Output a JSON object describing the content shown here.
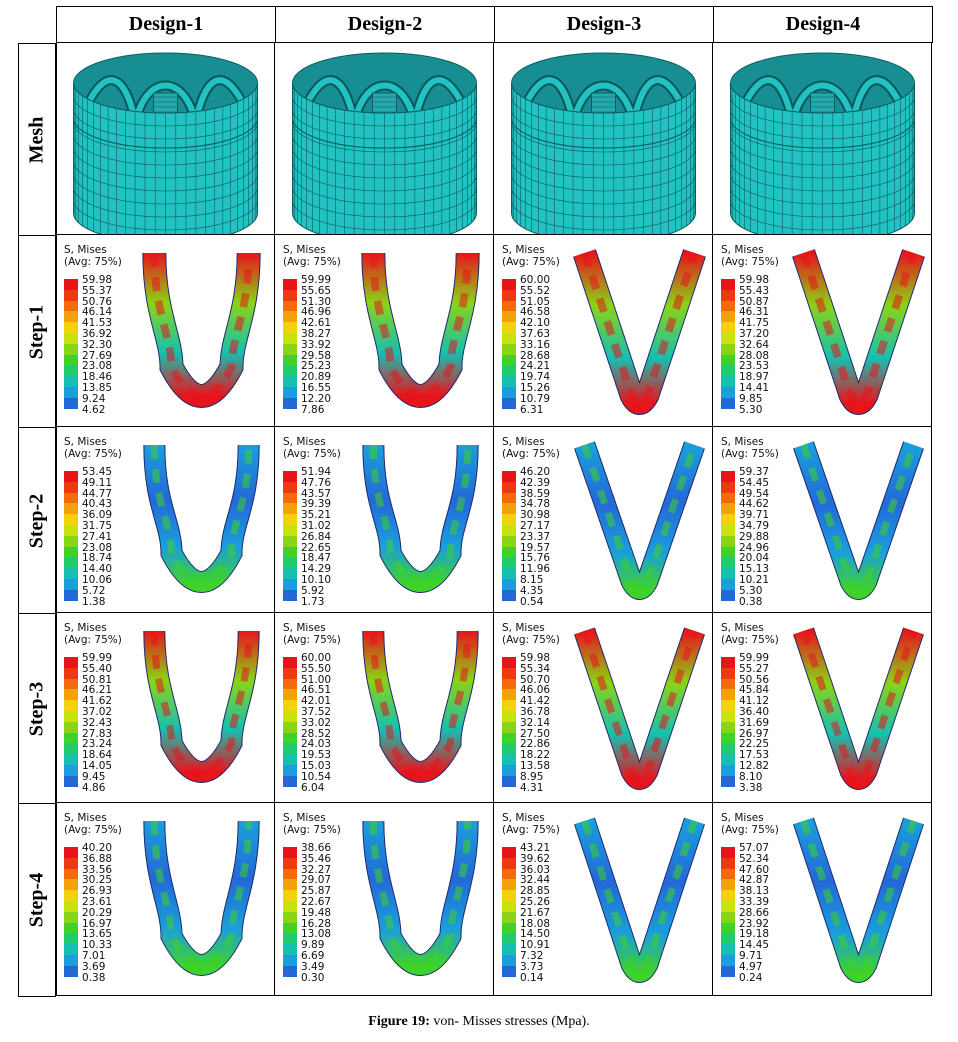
{
  "columns": [
    "Design-1",
    "Design-2",
    "Design-3",
    "Design-4"
  ],
  "rows": [
    "Mesh",
    "Step-1",
    "Step-2",
    "Step-3",
    "Step-4"
  ],
  "legend_title": [
    "S, Mises",
    "(Avg: 75%)"
  ],
  "legends": {
    "step1": [
      [
        "59.98",
        "55.37",
        "50.76",
        "46.14",
        "41.53",
        "36.92",
        "32.30",
        "27.69",
        "23.08",
        "18.46",
        "13.85",
        "9.24",
        "4.62"
      ],
      [
        "59.99",
        "55.65",
        "51.30",
        "46.96",
        "42.61",
        "38.27",
        "33.92",
        "29.58",
        "25.23",
        "20.89",
        "16.55",
        "12.20",
        "7.86"
      ],
      [
        "60.00",
        "55.52",
        "51.05",
        "46.58",
        "42.10",
        "37.63",
        "33.16",
        "28.68",
        "24.21",
        "19.74",
        "15.26",
        "10.79",
        "6.31"
      ],
      [
        "59.98",
        "55.43",
        "50.87",
        "46.31",
        "41.75",
        "37.20",
        "32.64",
        "28.08",
        "23.53",
        "18.97",
        "14.41",
        "9.85",
        "5.30"
      ]
    ],
    "step2": [
      [
        "53.45",
        "49.11",
        "44.77",
        "40.43",
        "36.09",
        "31.75",
        "27.41",
        "23.08",
        "18.74",
        "14.40",
        "10.06",
        "5.72",
        "1.38"
      ],
      [
        "51.94",
        "47.76",
        "43.57",
        "39.39",
        "35.21",
        "31.02",
        "26.84",
        "22.65",
        "18.47",
        "14.29",
        "10.10",
        "5.92",
        "1.73"
      ],
      [
        "46.20",
        "42.39",
        "38.59",
        "34.78",
        "30.98",
        "27.17",
        "23.37",
        "19.57",
        "15.76",
        "11.96",
        "8.15",
        "4.35",
        "0.54"
      ],
      [
        "59.37",
        "54.45",
        "49.54",
        "44.62",
        "39.71",
        "34.79",
        "29.88",
        "24.96",
        "20.04",
        "15.13",
        "10.21",
        "5.30",
        "0.38"
      ]
    ],
    "step3": [
      [
        "59.99",
        "55.40",
        "50.81",
        "46.21",
        "41.62",
        "37.02",
        "32.43",
        "27.83",
        "23.24",
        "18.64",
        "14.05",
        "9.45",
        "4.86"
      ],
      [
        "60.00",
        "55.50",
        "51.00",
        "46.51",
        "42.01",
        "37.52",
        "33.02",
        "28.52",
        "24.03",
        "19.53",
        "15.03",
        "10.54",
        "6.04"
      ],
      [
        "59.98",
        "55.34",
        "50.70",
        "46.06",
        "41.42",
        "36.78",
        "32.14",
        "27.50",
        "22.86",
        "18.22",
        "13.58",
        "8.95",
        "4.31"
      ],
      [
        "59.99",
        "55.27",
        "50.56",
        "45.84",
        "41.12",
        "36.40",
        "31.69",
        "26.97",
        "22.25",
        "17.53",
        "12.82",
        "8.10",
        "3.38"
      ]
    ],
    "step4": [
      [
        "40.20",
        "36.88",
        "33.56",
        "30.25",
        "26.93",
        "23.61",
        "20.29",
        "16.97",
        "13.65",
        "10.33",
        "7.01",
        "3.69",
        "0.38"
      ],
      [
        "38.66",
        "35.46",
        "32.27",
        "29.07",
        "25.87",
        "22.67",
        "19.48",
        "16.28",
        "13.08",
        "9.89",
        "6.69",
        "3.49",
        "0.30"
      ],
      [
        "43.21",
        "39.62",
        "36.03",
        "32.44",
        "28.85",
        "25.26",
        "21.67",
        "18.08",
        "14.50",
        "10.91",
        "7.32",
        "3.73",
        "0.14"
      ],
      [
        "57.07",
        "52.34",
        "47.60",
        "42.87",
        "38.13",
        "33.39",
        "28.66",
        "23.92",
        "19.18",
        "14.45",
        "9.71",
        "4.97",
        "0.24"
      ]
    ]
  },
  "colormap": [
    "#e8141c",
    "#ee3a12",
    "#f66a0c",
    "#f5a10a",
    "#f2d20c",
    "#c8e20e",
    "#8ad416",
    "#3ed22a",
    "#1fcb6c",
    "#15c0b0",
    "#1a9fdc",
    "#2468d8",
    "#2a3ea8"
  ],
  "mesh_color": "#22c2c2",
  "caption": {
    "label": "Figure 19:",
    "text": "von- Misses stresses (Mpa)."
  }
}
